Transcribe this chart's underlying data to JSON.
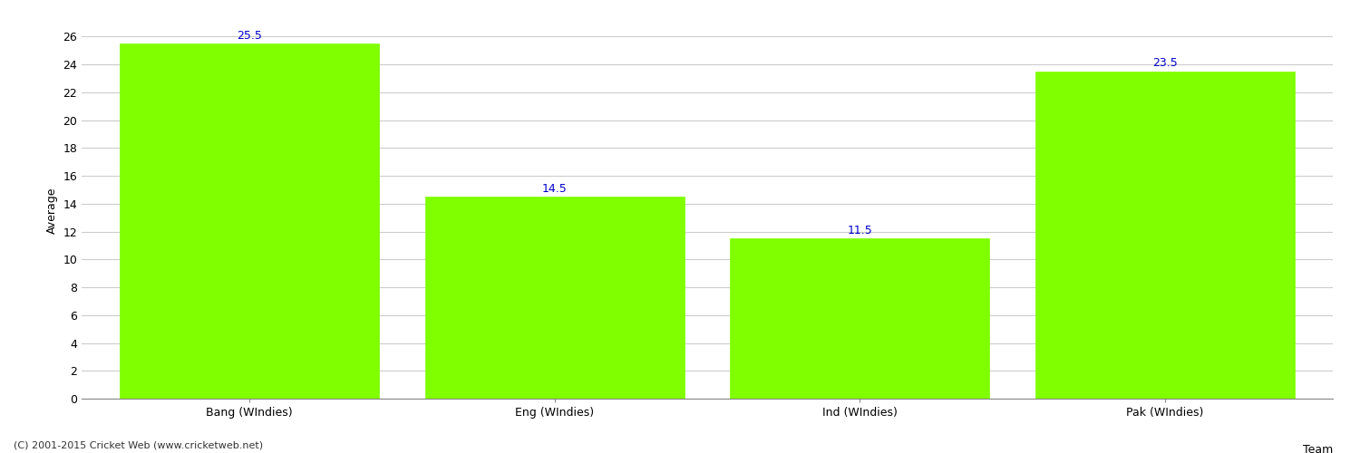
{
  "categories": [
    "Bang (WIndies)",
    "Eng (WIndies)",
    "Ind (WIndies)",
    "Pak (WIndies)"
  ],
  "values": [
    25.5,
    14.5,
    11.5,
    23.5
  ],
  "bar_color": "#7FFF00",
  "bar_edge_color": "#7FFF00",
  "value_label_color": "#0000CC",
  "value_label_fontsize": 9,
  "xlabel": "Team",
  "ylabel": "Average",
  "ylim": [
    0,
    27
  ],
  "yticks": [
    0,
    2,
    4,
    6,
    8,
    10,
    12,
    14,
    16,
    18,
    20,
    22,
    24,
    26
  ],
  "grid_color": "#cccccc",
  "background_color": "#ffffff",
  "bar_width": 0.85,
  "tick_fontsize": 9,
  "ylabel_fontsize": 9,
  "xlabel_fontsize": 9,
  "copyright_text": "(C) 2001-2015 Cricket Web (www.cricketweb.net)",
  "copyright_fontsize": 8,
  "copyright_color": "#333333"
}
